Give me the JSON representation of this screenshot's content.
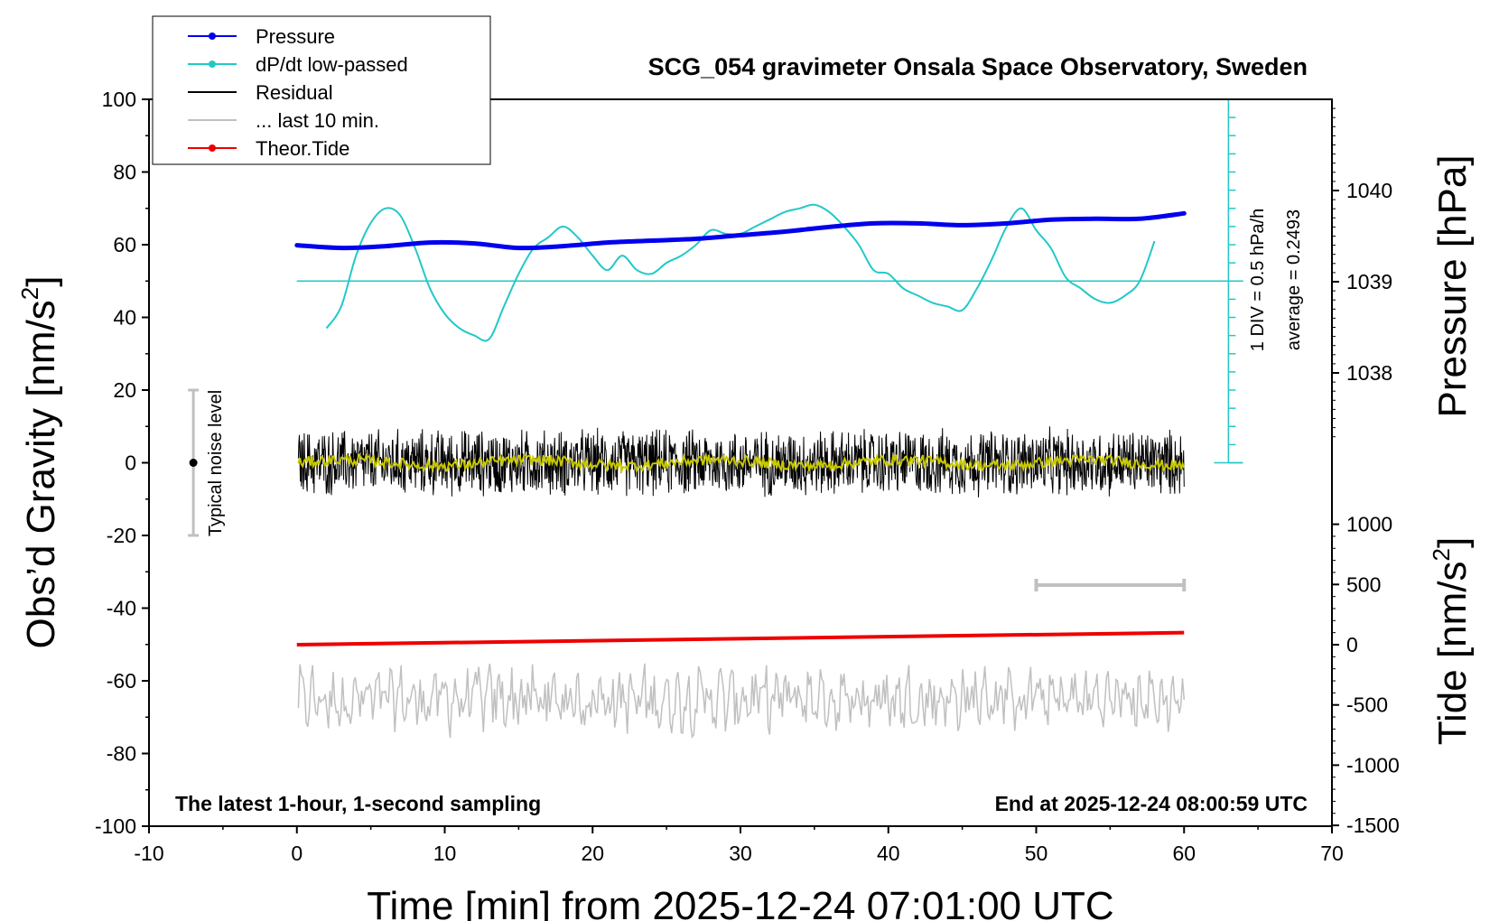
{
  "title": "SCG_054 gravimeter Onsala Space Observatory, Sweden",
  "footer_left": "The latest 1-hour, 1-second sampling",
  "footer_right": "End at 2025-12-24 08:00:59 UTC",
  "noise_label": "Typical noise level",
  "dpdt_scale_label": "1 DIV = 0.5 hPa/h",
  "dpdt_average_label": "average = 0.2493",
  "colors": {
    "pressure": "#0000ee",
    "dpdt": "#22c8c8",
    "residual": "#000000",
    "last10": "#c0c0c0",
    "theor_tide": "#ee0000",
    "residual_smoothed": "#c8c800"
  },
  "legend": [
    {
      "label": "Pressure",
      "color_key": "pressure",
      "marker": "dot"
    },
    {
      "label": "dP/dt low-passed",
      "color_key": "dpdt",
      "marker": "dot"
    },
    {
      "label": "Residual",
      "color_key": "residual",
      "marker": "line"
    },
    {
      "label": "... last 10 min.",
      "color_key": "last10",
      "marker": "line"
    },
    {
      "label": "Theor.Tide",
      "color_key": "theor_tide",
      "marker": "dot"
    }
  ],
  "chart_data": {
    "type": "line",
    "title": "SCG_054 gravimeter Onsala Space Observatory, Sweden",
    "xlabel": "Time [min] from 2025-12-24 07:01:00 UTC",
    "xlim": [
      -10,
      70
    ],
    "x_ticks": [
      -10,
      0,
      10,
      20,
      30,
      40,
      50,
      60,
      70
    ],
    "y_left": {
      "label_main": "Obs’d Gravity [nm/s",
      "label_sup": "2",
      "label_close": "]",
      "lim": [
        -100,
        100
      ],
      "ticks": [
        -100,
        -80,
        -60,
        -40,
        -20,
        0,
        20,
        40,
        60,
        80,
        100
      ]
    },
    "y_right_pressure": {
      "label": "Pressure [hPa]",
      "ticks": [
        1038,
        1039,
        1040
      ]
    },
    "y_right_tide": {
      "label_main": "Tide [nm/s",
      "label_sup": "2",
      "label_close": "]",
      "ticks": [
        -1500,
        -1000,
        -500,
        0,
        500,
        1000
      ]
    },
    "series": [
      {
        "name": "Pressure",
        "unit": "hPa",
        "x": [
          0,
          3,
          6,
          9,
          12,
          15,
          18,
          21,
          24,
          27,
          30,
          33,
          36,
          39,
          42,
          45,
          48,
          51,
          54,
          57,
          60
        ],
        "values": [
          1039.4,
          1039.37,
          1039.39,
          1039.43,
          1039.42,
          1039.37,
          1039.39,
          1039.43,
          1039.45,
          1039.47,
          1039.51,
          1039.55,
          1039.6,
          1039.64,
          1039.64,
          1039.62,
          1039.64,
          1039.68,
          1039.69,
          1039.69,
          1039.75
        ]
      },
      {
        "name": "dP/dt low-passed",
        "unit": "nm/s2 plot scale",
        "x": [
          2,
          3,
          4,
          5,
          6,
          7,
          8,
          9,
          10,
          11,
          12,
          13,
          14,
          15,
          16,
          17,
          18,
          19,
          20,
          21,
          22,
          23,
          24,
          25,
          26,
          27,
          28,
          29,
          30,
          31,
          32,
          33,
          34,
          35,
          36,
          37,
          38,
          39,
          40,
          41,
          42,
          43,
          44,
          45,
          46,
          47,
          48,
          49,
          50,
          51,
          52,
          53,
          54,
          55,
          56,
          57,
          58
        ],
        "values": [
          37,
          43,
          57,
          66,
          70,
          68,
          59,
          48,
          41,
          37,
          35,
          34,
          43,
          52,
          59,
          62,
          65,
          62,
          57,
          53,
          57,
          53,
          52,
          55,
          57,
          60,
          64,
          63,
          63,
          65,
          67,
          69,
          70,
          71,
          69,
          65,
          60,
          53,
          52,
          48,
          46,
          44,
          43,
          42,
          48,
          56,
          65,
          70,
          64,
          59,
          51,
          48,
          45,
          44,
          46,
          50,
          61
        ]
      },
      {
        "name": "Residual",
        "unit": "nm/s2",
        "x_range": [
          0,
          60
        ],
        "amplitude": 9,
        "values_summary": "noise around 0 with peaks up to about ±15"
      },
      {
        "name": "... last 10 min.",
        "unit": "nm/s2",
        "x_range": [
          0,
          60
        ],
        "center": -65,
        "amplitude": 8
      },
      {
        "name": "Theor.Tide",
        "unit": "nm/s2 (right tide axis)",
        "x": [
          0,
          60
        ],
        "values": [
          0,
          100
        ]
      }
    ],
    "dpdt_reference_level": 50,
    "noise_level_range": [
      -20,
      20
    ],
    "noise_level_x": -7,
    "scale_bar_x": [
      50,
      60
    ],
    "legend_position": "top-left",
    "grid": false
  }
}
